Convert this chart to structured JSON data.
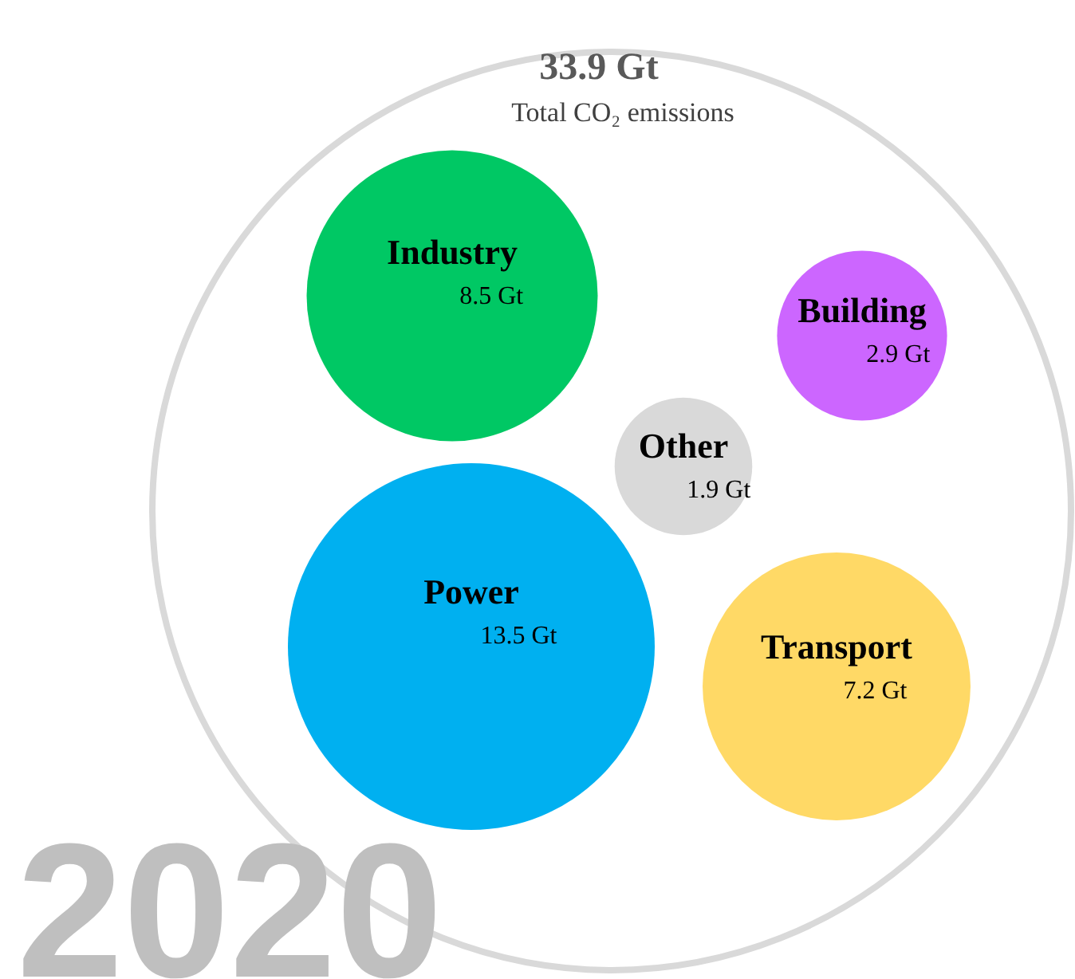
{
  "chart_data": {
    "type": "other",
    "title": "33.9 Gt",
    "subtitle": "Total CO₂ emissions",
    "categories": [
      "Industry",
      "Building",
      "Other",
      "Power",
      "Transport"
    ],
    "values": [
      8.5,
      2.9,
      1.9,
      13.5,
      7.2
    ],
    "colors": [
      "#00c864",
      "#cc66ff",
      "#d9d9d9",
      "#00b0f0",
      "#ffd966"
    ],
    "value_labels": [
      "8.5 Gt",
      "2.9 Gt",
      "1.9 Gt",
      "13.5 Gt",
      "7.2 Gt"
    ],
    "annotations": [
      "2020"
    ]
  }
}
